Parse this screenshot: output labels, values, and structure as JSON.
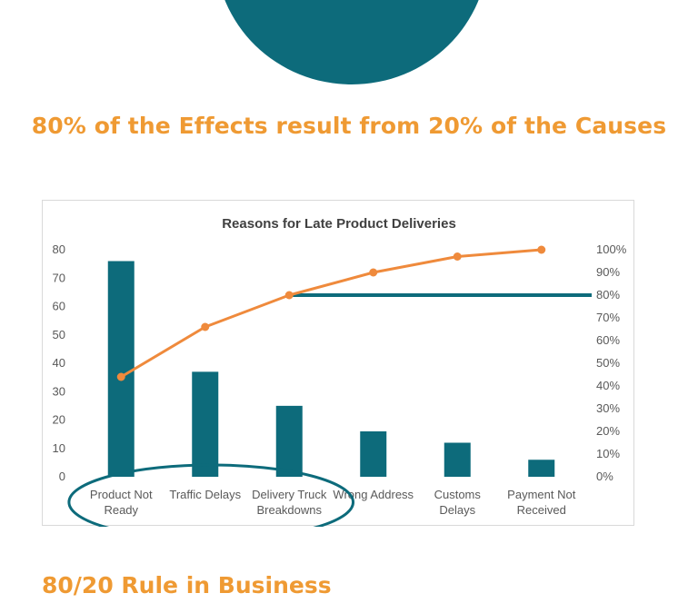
{
  "headline": "80% of the Effects result from 20% of the Causes",
  "section_title": "80/20 Rule in Business",
  "colors": {
    "teal": "#0d6b7b",
    "orange": "#ef8a3c",
    "headline_orange": "#ef9a33",
    "axis_text": "#595959"
  },
  "chart_data": {
    "type": "bar",
    "title": "Reasons for Late Product Deliveries",
    "categories": [
      [
        "Product Not",
        "Ready"
      ],
      [
        "Traffic Delays"
      ],
      [
        "Delivery Truck",
        "Breakdowns"
      ],
      [
        "Wrong Address"
      ],
      [
        "Customs",
        "Delays"
      ],
      [
        "Payment Not",
        "Received"
      ]
    ],
    "values": [
      76,
      37,
      25,
      16,
      12,
      6
    ],
    "cumulative_percent": [
      44,
      66,
      80,
      90,
      97,
      100
    ],
    "ylim": [
      0,
      80
    ],
    "y_ticks": [
      0,
      10,
      20,
      30,
      40,
      50,
      60,
      70,
      80
    ],
    "y2lim": [
      0,
      100
    ],
    "y2_ticks": [
      "0%",
      "10%",
      "20%",
      "30%",
      "40%",
      "50%",
      "60%",
      "70%",
      "80%",
      "90%",
      "100%"
    ],
    "threshold_percent": 80,
    "highlighted_categories": [
      0,
      1,
      2
    ],
    "grid": false,
    "legend": "none"
  }
}
